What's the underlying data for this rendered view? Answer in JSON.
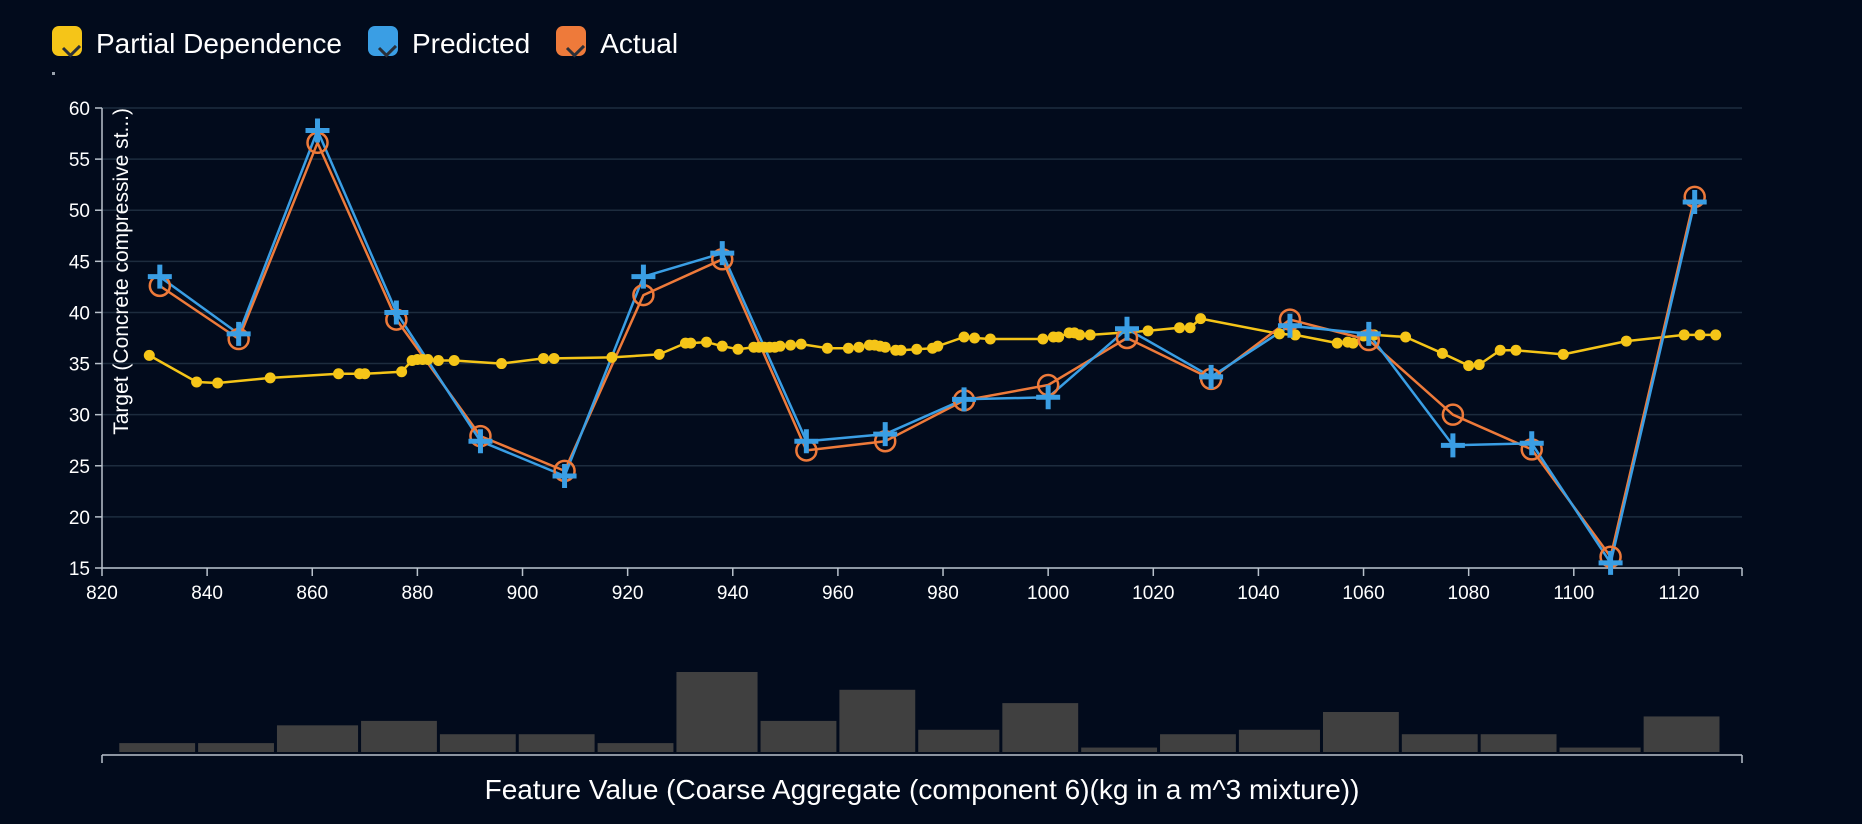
{
  "legend": {
    "items": [
      {
        "label": "Partial Dependence",
        "color": "#f5c518"
      },
      {
        "label": "Predicted",
        "color": "#3a9ee4"
      },
      {
        "label": "Actual",
        "color": "#ee7a3a"
      }
    ]
  },
  "chart_data": {
    "type": "line",
    "ylabel": "Target (Concrete compressive st...)",
    "xlabel": "Feature Value (Coarse Aggregate (component 6)(kg in a m^3 mixture))",
    "xlim": [
      820,
      1132
    ],
    "ylim": [
      15,
      60
    ],
    "x_ticks": [
      820,
      840,
      860,
      880,
      900,
      920,
      940,
      960,
      980,
      1000,
      1020,
      1040,
      1060,
      1080,
      1100,
      1120
    ],
    "y_ticks": [
      15,
      20,
      25,
      30,
      35,
      40,
      45,
      50,
      55,
      60
    ],
    "grid": "horizontal",
    "legend_position": "top-left",
    "series": [
      {
        "name": "Partial Dependence",
        "color": "#f5c518",
        "marker": "dot",
        "points": [
          [
            829,
            35.8
          ],
          [
            838,
            33.2
          ],
          [
            842,
            33.1
          ],
          [
            852,
            33.6
          ],
          [
            865,
            34
          ],
          [
            869,
            34
          ],
          [
            870,
            34
          ],
          [
            877,
            34.2
          ],
          [
            879,
            35.3
          ],
          [
            880,
            35.4
          ],
          [
            881,
            35.4
          ],
          [
            882,
            35.4
          ],
          [
            884,
            35.3
          ],
          [
            887,
            35.3
          ],
          [
            896,
            35
          ],
          [
            904,
            35.5
          ],
          [
            906,
            35.5
          ],
          [
            917,
            35.6
          ],
          [
            926,
            35.9
          ],
          [
            931,
            37
          ],
          [
            932,
            37
          ],
          [
            935,
            37.1
          ],
          [
            938,
            36.7
          ],
          [
            941,
            36.4
          ],
          [
            944,
            36.6
          ],
          [
            945,
            36.6
          ],
          [
            946,
            36.6
          ],
          [
            947,
            36.6
          ],
          [
            948,
            36.6
          ],
          [
            949,
            36.7
          ],
          [
            951,
            36.8
          ],
          [
            953,
            36.9
          ],
          [
            958,
            36.5
          ],
          [
            962,
            36.5
          ],
          [
            964,
            36.6
          ],
          [
            966,
            36.8
          ],
          [
            967,
            36.8
          ],
          [
            968,
            36.7
          ],
          [
            969,
            36.6
          ],
          [
            971,
            36.3
          ],
          [
            972,
            36.3
          ],
          [
            975,
            36.4
          ],
          [
            978,
            36.5
          ],
          [
            979,
            36.7
          ],
          [
            984,
            37.6
          ],
          [
            986,
            37.5
          ],
          [
            989,
            37.4
          ],
          [
            999,
            37.4
          ],
          [
            1001,
            37.6
          ],
          [
            1002,
            37.6
          ],
          [
            1004,
            38
          ],
          [
            1005,
            38
          ],
          [
            1006,
            37.8
          ],
          [
            1008,
            37.8
          ],
          [
            1019,
            38.2
          ],
          [
            1025,
            38.5
          ],
          [
            1027,
            38.5
          ],
          [
            1029,
            39.4
          ],
          [
            1044,
            37.9
          ],
          [
            1047,
            37.8
          ],
          [
            1055,
            37
          ],
          [
            1057,
            37.1
          ],
          [
            1058,
            37
          ],
          [
            1060,
            37.7
          ],
          [
            1062,
            37.8
          ],
          [
            1068,
            37.6
          ],
          [
            1075,
            36
          ],
          [
            1080,
            34.8
          ],
          [
            1082,
            34.9
          ],
          [
            1086,
            36.3
          ],
          [
            1089,
            36.3
          ],
          [
            1098,
            35.9
          ],
          [
            1110,
            37.2
          ],
          [
            1121,
            37.8
          ],
          [
            1124,
            37.8
          ],
          [
            1127,
            37.8
          ]
        ]
      },
      {
        "name": "Predicted",
        "color": "#3a9ee4",
        "marker": "plus",
        "points": [
          [
            831,
            43.5
          ],
          [
            846,
            37.9
          ],
          [
            861,
            57.8
          ],
          [
            876,
            40
          ],
          [
            892,
            27.4
          ],
          [
            908,
            24
          ],
          [
            923,
            43.5
          ],
          [
            938,
            45.8
          ],
          [
            954,
            27.4
          ],
          [
            969,
            28.1
          ],
          [
            984,
            31.5
          ],
          [
            1000,
            31.7
          ],
          [
            1015,
            38.4
          ],
          [
            1031,
            33.7
          ],
          [
            1046,
            38.7
          ],
          [
            1061,
            37.9
          ],
          [
            1077,
            27
          ],
          [
            1092,
            27.2
          ],
          [
            1107,
            15.5
          ],
          [
            1123,
            50.8
          ]
        ]
      },
      {
        "name": "Actual",
        "color": "#ee7a3a",
        "marker": "circle",
        "points": [
          [
            831,
            42.6
          ],
          [
            846,
            37.4
          ],
          [
            861,
            56.6
          ],
          [
            876,
            39.3
          ],
          [
            892,
            27.9
          ],
          [
            908,
            24.5
          ],
          [
            923,
            41.7
          ],
          [
            938,
            45.2
          ],
          [
            954,
            26.5
          ],
          [
            969,
            27.4
          ],
          [
            984,
            31.4
          ],
          [
            1000,
            32.9
          ],
          [
            1015,
            37.5
          ],
          [
            1031,
            33.5
          ],
          [
            1046,
            39.3
          ],
          [
            1061,
            37.3
          ],
          [
            1077,
            30
          ],
          [
            1092,
            26.6
          ],
          [
            1107,
            16.1
          ],
          [
            1123,
            51.3
          ]
        ]
      }
    ],
    "histogram": {
      "type": "bar",
      "bin_edges": [
        823,
        838,
        853,
        869,
        884,
        899,
        914,
        929,
        945,
        960,
        975,
        991,
        1006,
        1021,
        1036,
        1052,
        1067,
        1082,
        1097,
        1113,
        1128
      ],
      "counts": [
        2,
        2,
        6,
        7,
        4,
        4,
        2,
        18,
        7,
        14,
        5,
        11,
        1,
        4,
        5,
        9,
        4,
        4,
        1,
        8
      ]
    }
  }
}
